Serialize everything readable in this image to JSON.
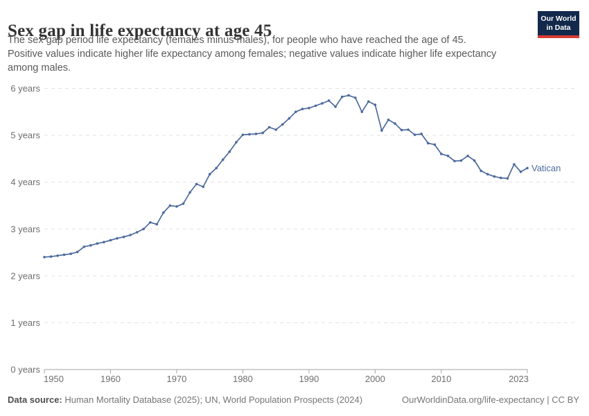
{
  "header": {
    "title": "Sex gap in life expectancy at age 45",
    "subtitle_lines": [
      "The sex gap period life expectancy (females minus males), for people who have reached the age of 45.",
      "Positive values indicate higher life expectancy among females; negative values indicate higher life expectancy",
      "among males."
    ]
  },
  "logo": {
    "line1": "Our World",
    "line2": "in Data"
  },
  "chart_data": {
    "type": "line",
    "title": "Sex gap in life expectancy at age 45",
    "xlabel": "",
    "ylabel": "",
    "ylim": [
      0,
      6
    ],
    "ytick_labels": [
      "0 years",
      "1 years",
      "2 years",
      "3 years",
      "4 years",
      "5 years",
      "6 years"
    ],
    "xticks": [
      1950,
      1960,
      1970,
      1980,
      1990,
      2000,
      2010,
      2023
    ],
    "grid": "horizontal-dashed",
    "legend": "end-of-line-label",
    "x": [
      1950,
      1951,
      1952,
      1953,
      1954,
      1955,
      1956,
      1957,
      1958,
      1959,
      1960,
      1961,
      1962,
      1963,
      1964,
      1965,
      1966,
      1967,
      1968,
      1969,
      1970,
      1971,
      1972,
      1973,
      1974,
      1975,
      1976,
      1977,
      1978,
      1979,
      1980,
      1981,
      1982,
      1983,
      1984,
      1985,
      1986,
      1987,
      1988,
      1989,
      1990,
      1991,
      1992,
      1993,
      1994,
      1995,
      1996,
      1997,
      1998,
      1999,
      2000,
      2001,
      2002,
      2003,
      2004,
      2005,
      2006,
      2007,
      2008,
      2009,
      2010,
      2011,
      2012,
      2013,
      2014,
      2015,
      2016,
      2017,
      2018,
      2019,
      2020,
      2021,
      2022,
      2023
    ],
    "series": [
      {
        "name": "Vatican",
        "color": "#4C6A9C",
        "values": [
          2.4,
          2.41,
          2.43,
          2.45,
          2.47,
          2.51,
          2.62,
          2.65,
          2.69,
          2.72,
          2.76,
          2.8,
          2.83,
          2.87,
          2.93,
          3.0,
          3.14,
          3.1,
          3.35,
          3.5,
          3.48,
          3.54,
          3.78,
          3.96,
          3.9,
          4.17,
          4.3,
          4.48,
          4.65,
          4.85,
          5.01,
          5.02,
          5.03,
          5.05,
          5.17,
          5.12,
          5.23,
          5.36,
          5.5,
          5.56,
          5.58,
          5.63,
          5.68,
          5.74,
          5.61,
          5.82,
          5.85,
          5.8,
          5.5,
          5.72,
          5.65,
          5.1,
          5.33,
          5.25,
          5.11,
          5.12,
          5.01,
          5.03,
          4.83,
          4.8,
          4.6,
          4.56,
          4.45,
          4.46,
          4.56,
          4.46,
          4.24,
          4.17,
          4.12,
          4.09,
          4.08,
          4.38,
          4.22,
          4.3
        ]
      }
    ],
    "entity_label": "Vatican"
  },
  "footer": {
    "source_label": "Data source:",
    "source_text": " Human Mortality Database (2025); UN, World Population Prospects (2024)",
    "credit_text": "OurWorldinData.org/life-expectancy | CC BY"
  },
  "colors": {
    "line": "#4C6A9C",
    "title_text": "#333333",
    "subtitle_text": "#595959",
    "axis_text": "#6e6e6e",
    "grid_line": "#e2e2e2",
    "axis_line": "#a3a3a3",
    "logo_bg": "#12294b",
    "logo_accent": "#d93a34",
    "footer_text": "#757575"
  }
}
